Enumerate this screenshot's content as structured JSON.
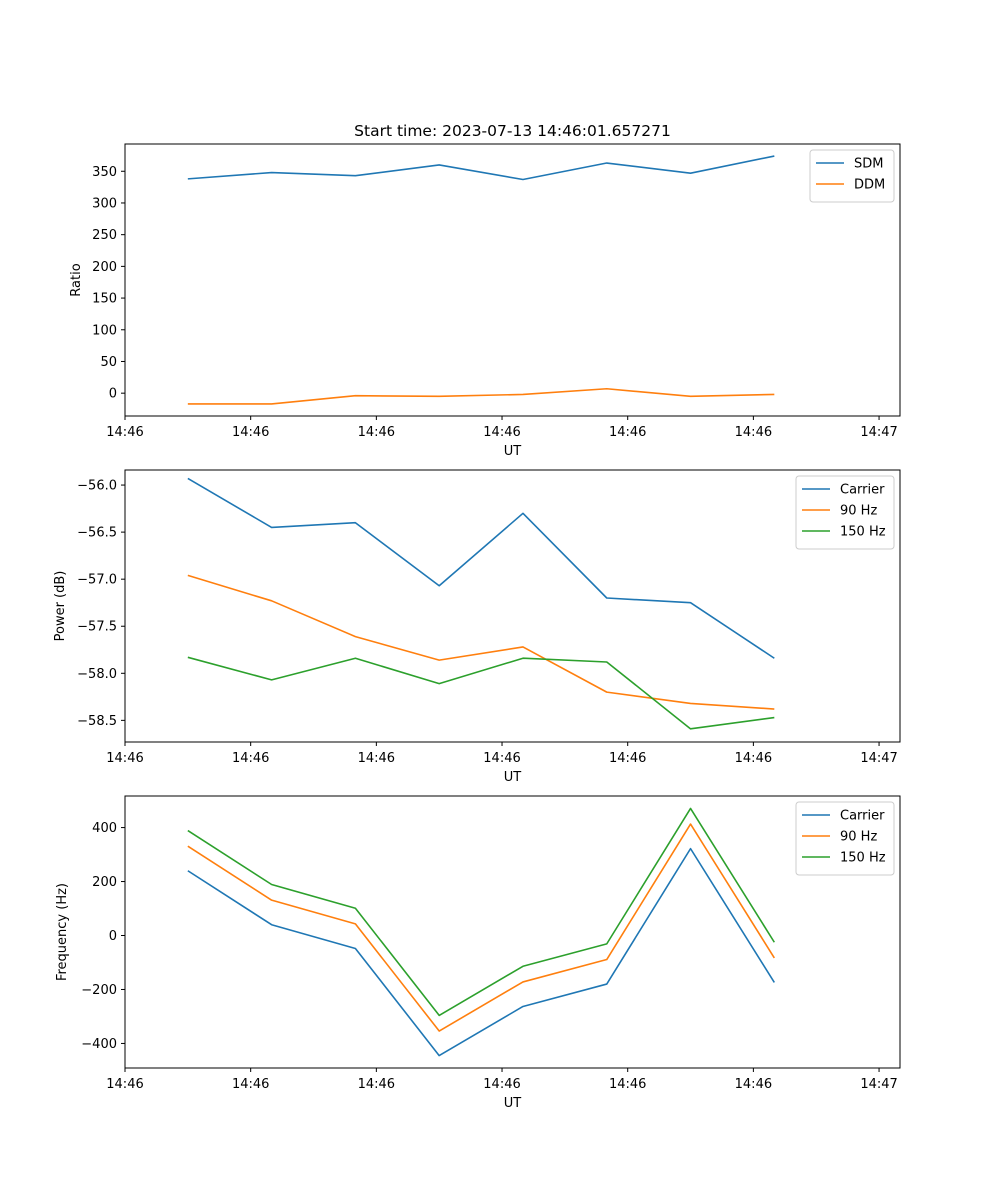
{
  "figure_title": "Start time: 2023-07-13 14:46:01.657271",
  "colors": {
    "blue": "#1f77b4",
    "orange": "#ff7f0e",
    "green": "#2ca02c"
  },
  "chart_data": [
    {
      "type": "line",
      "title": "Start time: 2023-07-13 14:46:01.657271",
      "xlabel": "UT",
      "ylabel": "Ratio",
      "xlim": [
        -0.75,
        8.5
      ],
      "ylim": [
        -36,
        393
      ],
      "x": [
        0,
        1,
        2,
        3,
        4,
        5,
        6,
        7
      ],
      "x_ticks": [
        -0.75,
        0.75,
        2.25,
        3.75,
        5.25,
        6.75,
        8.25
      ],
      "x_tick_labels": [
        "14:46",
        "14:46",
        "14:46",
        "14:46",
        "14:46",
        "14:46",
        "14:47"
      ],
      "y_ticks": [
        0,
        50,
        100,
        150,
        200,
        250,
        300,
        350
      ],
      "legend_position": "upper-right",
      "series": [
        {
          "name": "SDM",
          "color": "#1f77b4",
          "values": [
            338,
            348,
            343,
            360,
            337,
            363,
            347,
            374
          ]
        },
        {
          "name": "DDM",
          "color": "#ff7f0e",
          "values": [
            -17,
            -17,
            -4,
            -5,
            -2,
            7,
            -5,
            -2
          ]
        }
      ]
    },
    {
      "type": "line",
      "xlabel": "UT",
      "ylabel": "Power (dB)",
      "xlim": [
        -0.75,
        8.5
      ],
      "ylim": [
        -58.73,
        -55.84
      ],
      "x": [
        0,
        1,
        2,
        3,
        4,
        5,
        6,
        7
      ],
      "x_ticks": [
        -0.75,
        0.75,
        2.25,
        3.75,
        5.25,
        6.75,
        8.25
      ],
      "x_tick_labels": [
        "14:46",
        "14:46",
        "14:46",
        "14:46",
        "14:46",
        "14:46",
        "14:47"
      ],
      "y_ticks": [
        -58.5,
        -58.0,
        -57.5,
        -57.0,
        -56.5,
        -56.0
      ],
      "y_tick_labels": [
        "−58.5",
        "−58.0",
        "−57.5",
        "−57.0",
        "−56.5",
        "−56.0"
      ],
      "legend_position": "upper-right",
      "series": [
        {
          "name": "Carrier",
          "color": "#1f77b4",
          "values": [
            -55.93,
            -56.45,
            -56.4,
            -57.07,
            -56.3,
            -57.2,
            -57.25,
            -57.84
          ]
        },
        {
          "name": "90 Hz",
          "color": "#ff7f0e",
          "values": [
            -56.96,
            -57.23,
            -57.61,
            -57.86,
            -57.72,
            -58.2,
            -58.32,
            -58.38
          ]
        },
        {
          "name": "150 Hz",
          "color": "#2ca02c",
          "values": [
            -57.83,
            -58.07,
            -57.84,
            -58.11,
            -57.84,
            -57.88,
            -58.59,
            -58.47
          ]
        }
      ]
    },
    {
      "type": "line",
      "xlabel": "UT",
      "ylabel": "Frequency (Hz)",
      "xlim": [
        -0.75,
        8.5
      ],
      "ylim": [
        -491,
        517
      ],
      "x": [
        0,
        1,
        2,
        3,
        4,
        5,
        6,
        7
      ],
      "x_ticks": [
        -0.75,
        0.75,
        2.25,
        3.75,
        5.25,
        6.75,
        8.25
      ],
      "x_tick_labels": [
        "14:46",
        "14:46",
        "14:46",
        "14:46",
        "14:46",
        "14:46",
        "14:47"
      ],
      "y_ticks": [
        -400,
        -200,
        0,
        200,
        400
      ],
      "y_tick_labels": [
        "−400",
        "−200",
        "0",
        "200",
        "400"
      ],
      "legend_position": "upper-right",
      "series": [
        {
          "name": "Carrier",
          "color": "#1f77b4",
          "values": [
            240,
            40,
            -48,
            -445,
            -263,
            -180,
            322,
            -174
          ]
        },
        {
          "name": "90 Hz",
          "color": "#ff7f0e",
          "values": [
            331,
            131,
            43,
            -354,
            -172,
            -89,
            413,
            -83
          ]
        },
        {
          "name": "150 Hz",
          "color": "#2ca02c",
          "values": [
            389,
            189,
            101,
            -296,
            -114,
            -31,
            471,
            -25
          ]
        }
      ]
    }
  ]
}
